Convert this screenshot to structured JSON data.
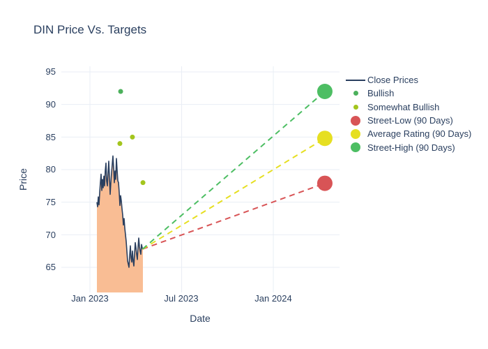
{
  "title": "DIN Price Vs. Targets",
  "colors": {
    "text": "#2a3f5f",
    "background": "#ffffff",
    "grid": "#e9eef5",
    "close_line": "#2a3f5f",
    "close_fill": "#f9bd94",
    "bullish": "#4cb15c",
    "somewhat_bullish": "#a3c51d",
    "street_low": "#d85456",
    "average_rating": "#e6df22",
    "street_high": "#4dbe63"
  },
  "legend": {
    "items": [
      {
        "label": "Close Prices",
        "marker": "line"
      },
      {
        "label": "Bullish",
        "marker": "small-dot"
      },
      {
        "label": "Somewhat Bullish",
        "marker": "small-dot"
      },
      {
        "label": "Street-Low (90 Days)",
        "marker": "big-circle"
      },
      {
        "label": "Average Rating (90 Days)",
        "marker": "big-circle"
      },
      {
        "label": "Street-High (90 Days)",
        "marker": "big-circle"
      }
    ]
  },
  "chart_data": {
    "type": "line",
    "title": "DIN Price Vs. Targets",
    "xlabel": "Date",
    "ylabel": "Price",
    "x_unit": "months since Jan 2023",
    "xlim": [
      -1.87,
      16.33
    ],
    "ylim": [
      61.14,
      95.86
    ],
    "grid": true,
    "legend_position": "right",
    "x_ticks": [
      {
        "x": 0,
        "label": "Jan 2023"
      },
      {
        "x": 6,
        "label": "Jul 2023"
      },
      {
        "x": 12,
        "label": "Jan 2024"
      }
    ],
    "y_ticks": [
      65,
      70,
      75,
      80,
      85,
      90,
      95
    ],
    "series": [
      {
        "name": "Close Prices",
        "mode": "line",
        "fill": true,
        "width": 1.6,
        "color": "#2a3f5f",
        "fill_color": "#f9bd94",
        "x": [
          0.456,
          0.502,
          0.547,
          0.593,
          0.639,
          0.684,
          0.73,
          0.776,
          0.821,
          0.867,
          0.912,
          0.958,
          1.004,
          1.049,
          1.095,
          1.141,
          1.186,
          1.232,
          1.277,
          1.323,
          1.369,
          1.414,
          1.46,
          1.506,
          1.551,
          1.597,
          1.642,
          1.688,
          1.734,
          1.779,
          1.825,
          1.871,
          1.916,
          1.962,
          2.007,
          2.053,
          2.099,
          2.144,
          2.19,
          2.236,
          2.281,
          2.327,
          2.372,
          2.418,
          2.464,
          2.509,
          2.555,
          2.601,
          2.646,
          2.692,
          2.737,
          2.783,
          2.829,
          2.874,
          2.92,
          2.966,
          3.011,
          3.057,
          3.102,
          3.148,
          3.194,
          3.239,
          3.285,
          3.331,
          3.376,
          3.422,
          3.467
        ],
        "y": [
          75.0,
          74.3,
          75.8,
          74.6,
          76.5,
          78.0,
          79.3,
          76.8,
          78.5,
          77.2,
          79.0,
          77.5,
          79.8,
          81.0,
          78.2,
          77.5,
          79.5,
          81.3,
          78.8,
          76.2,
          78.0,
          79.5,
          80.8,
          82.1,
          80.2,
          78.0,
          79.8,
          78.5,
          81.7,
          79.9,
          78.3,
          78.0,
          76.5,
          74.5,
          76.0,
          75.2,
          74.0,
          73.0,
          71.5,
          72.5,
          71.0,
          70.0,
          69.0,
          67.5,
          66.0,
          65.5,
          65.0,
          66.8,
          68.3,
          66.5,
          65.8,
          67.5,
          66.0,
          65.2,
          67.0,
          68.8,
          68.0,
          67.0,
          66.2,
          68.0,
          69.5,
          68.2,
          67.5,
          67.0,
          68.5,
          68.0,
          67.8
        ]
      },
      {
        "name": "Bullish",
        "mode": "markers",
        "color": "#4cb15c",
        "marker_size": 7,
        "x": [
          2.01
        ],
        "y": [
          92.0
        ]
      },
      {
        "name": "Somewhat Bullish",
        "mode": "markers",
        "color": "#a3c51d",
        "marker_size": 7,
        "x": [
          1.96,
          2.78,
          3.47
        ],
        "y": [
          84.0,
          85.0,
          78.0
        ]
      },
      {
        "name": "Street-Low (90 Days)",
        "mode": "dashed-line-with-end-marker",
        "color": "#d85456",
        "marker_size": 22,
        "x": [
          3.44,
          15.37
        ],
        "y": [
          67.8,
          77.9
        ]
      },
      {
        "name": "Average Rating (90 Days)",
        "mode": "dashed-line-with-end-marker",
        "color": "#e6df22",
        "marker_size": 22,
        "x": [
          3.44,
          15.37
        ],
        "y": [
          67.8,
          84.8
        ]
      },
      {
        "name": "Street-High (90 Days)",
        "mode": "dashed-line-with-end-marker",
        "color": "#4dbe63",
        "marker_size": 22,
        "x": [
          3.44,
          15.37
        ],
        "y": [
          67.8,
          92.0
        ]
      }
    ]
  }
}
